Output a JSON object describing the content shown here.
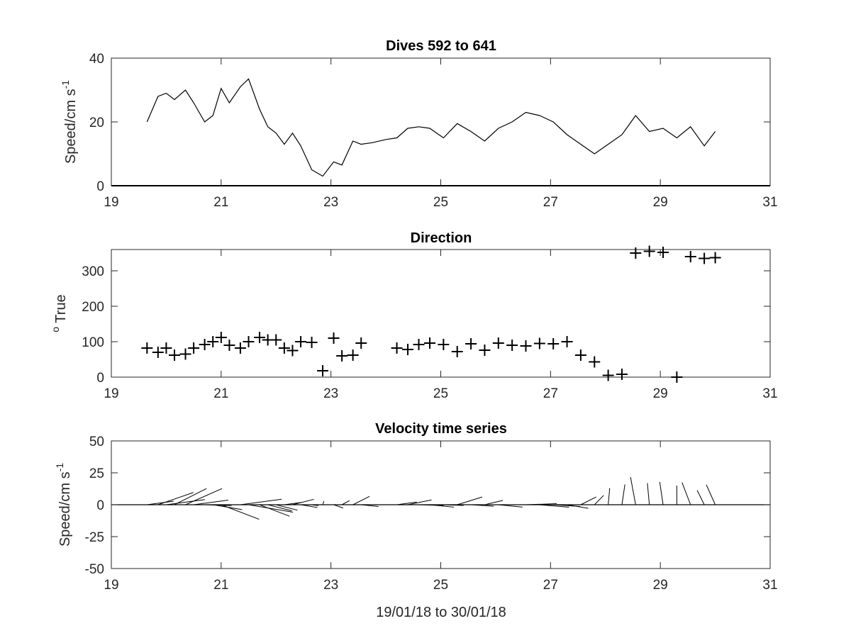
{
  "chart_data": [
    {
      "type": "line",
      "title": "Dives 592 to 641",
      "xlabel": "",
      "ylabel": {
        "base": "Speed/cm s",
        "superscript": "-1"
      },
      "xlim": [
        19,
        31
      ],
      "ylim": [
        0,
        40
      ],
      "xticks": [
        "19",
        "21",
        "23",
        "25",
        "27",
        "29",
        "31"
      ],
      "yticks": [
        "0",
        "20",
        "40"
      ],
      "grid": false,
      "color": "#000000",
      "x": [
        19.65,
        19.85,
        20.0,
        20.15,
        20.35,
        20.5,
        20.7,
        20.85,
        21.0,
        21.15,
        21.35,
        21.5,
        21.7,
        21.85,
        22.0,
        22.15,
        22.3,
        22.45,
        22.65,
        22.85,
        23.05,
        23.2,
        23.4,
        23.55,
        23.75,
        24.0,
        24.2,
        24.4,
        24.6,
        24.8,
        25.05,
        25.3,
        25.55,
        25.8,
        26.05,
        26.3,
        26.55,
        26.8,
        27.05,
        27.3,
        27.55,
        27.8,
        28.05,
        28.3,
        28.55,
        28.8,
        29.05,
        29.3,
        29.55,
        29.8,
        30.0
      ],
      "y": [
        20,
        28,
        29,
        27,
        30,
        26,
        20,
        22,
        30.5,
        26,
        31,
        33.5,
        24,
        18.5,
        16.5,
        13,
        16.5,
        12.5,
        5,
        3,
        7.5,
        6.5,
        14,
        13,
        13.5,
        14.5,
        15,
        18,
        18.5,
        18,
        15,
        19.5,
        17,
        14,
        18,
        20,
        23,
        22,
        20,
        16,
        13,
        10,
        13,
        16,
        22,
        17,
        18,
        15,
        18.5,
        12.5,
        17
      ]
    },
    {
      "type": "scatter",
      "title": "Direction",
      "xlabel": "",
      "ylabel": {
        "superscript": "o",
        "base": " True"
      },
      "xlim": [
        19,
        31
      ],
      "ylim": [
        0,
        360
      ],
      "xticks": [
        "19",
        "21",
        "23",
        "25",
        "27",
        "29",
        "31"
      ],
      "yticks": [
        "0",
        "100",
        "200",
        "300"
      ],
      "grid": false,
      "marker": "+",
      "color": "#000000",
      "x": [
        19.65,
        19.85,
        20.0,
        20.15,
        20.35,
        20.5,
        20.7,
        20.85,
        21.0,
        21.15,
        21.35,
        21.5,
        21.7,
        21.85,
        22.0,
        22.15,
        22.3,
        22.45,
        22.65,
        22.85,
        23.05,
        23.2,
        23.4,
        23.55,
        24.2,
        24.4,
        24.6,
        24.8,
        25.05,
        25.3,
        25.55,
        25.8,
        26.05,
        26.3,
        26.55,
        26.8,
        27.05,
        27.3,
        27.55,
        27.8,
        28.05,
        28.3,
        28.55,
        28.8,
        29.05,
        29.3,
        29.55,
        29.8,
        30.0
      ],
      "y": [
        82,
        70,
        82,
        62,
        65,
        82,
        92,
        100,
        112,
        90,
        82,
        100,
        112,
        105,
        105,
        82,
        75,
        100,
        98,
        18,
        110,
        60,
        62,
        96,
        82,
        78,
        92,
        96,
        92,
        72,
        94,
        76,
        96,
        90,
        88,
        95,
        94,
        100,
        62,
        43,
        5,
        8,
        350,
        355,
        352,
        0,
        340,
        335,
        337
      ]
    },
    {
      "type": "line",
      "subtype": "vector-stick",
      "title": "Velocity time series",
      "xlabel": "19/01/18 to 30/01/18",
      "ylabel": {
        "base": "Speed/cm s",
        "superscript": "-1"
      },
      "xlim": [
        19,
        31
      ],
      "ylim": [
        -50,
        50
      ],
      "xticks": [
        "19",
        "21",
        "23",
        "25",
        "27",
        "29",
        "31"
      ],
      "yticks": [
        "50",
        "25",
        "0",
        "-25",
        "-50"
      ],
      "grid": false,
      "baseline": 0,
      "color": "#000000",
      "u_scale_days_per_cm_s": 0.0245
    }
  ]
}
